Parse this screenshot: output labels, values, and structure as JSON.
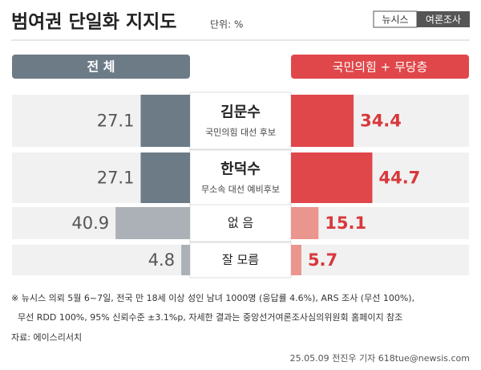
{
  "chart_data": {
    "type": "butterfly-bar",
    "title": "범여권 단일화 지지도",
    "unit": "단위: %",
    "brand": [
      "뉴시스",
      "여론조사"
    ],
    "categories": [
      "김문수",
      "한덕수",
      "없 음",
      "잘 모름"
    ],
    "sublabels": [
      "국민의힘 대선 후보",
      "무소속 대선 예비후보",
      null,
      null
    ],
    "series": [
      {
        "name": "전 체",
        "color": "#6d7b86",
        "colors": [
          "#6d7b86",
          "#6d7b86",
          "#abb1b6",
          "#abb1b6"
        ],
        "label_color": "#555555",
        "values": [
          27.1,
          27.1,
          40.9,
          4.8
        ]
      },
      {
        "name": "국민의힘 + 무당층",
        "color": "#e0474a",
        "colors": [
          "#e0474a",
          "#e0474a",
          "#eb958f",
          "#eb958f"
        ],
        "label_color": "#d8383c",
        "values": [
          34.4,
          44.7,
          15.1,
          5.7
        ]
      }
    ],
    "notes": [
      "※ 뉴시스 의뢰 5월 6~7일, 전국 만 18세 이상 성인 남녀 1000명 (응답률 4.6%), ARS 조사 (무선 100%),",
      "무선 RDD 100%, 95% 신뢰수준 ±3.1%p, 자세한 결과는 중앙선거여론조사심의위원회 홈페이지 참조"
    ],
    "source": "자료: 에이스리서치",
    "credit": "25.05.09 전진우 기자 618tue@newsis.com"
  }
}
